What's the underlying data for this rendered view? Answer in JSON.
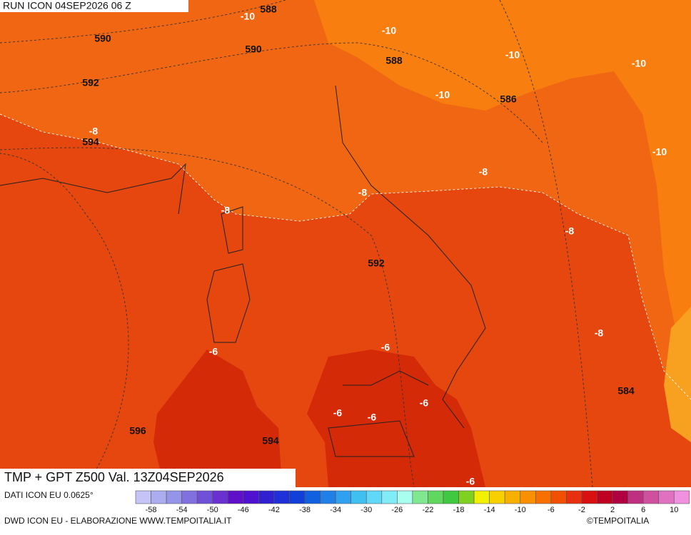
{
  "header": {
    "run": "RUN ICON 04SEP2026 06 Z",
    "title": "TMP + GPT Z500 Val. 13Z04SEP2026"
  },
  "map": {
    "temperature_labels": [
      -10,
      -10,
      -10,
      -10,
      -10,
      -8,
      -10,
      -8,
      -8,
      -8,
      -8,
      -8,
      -6,
      -6,
      -6,
      -6,
      -6,
      -6
    ],
    "height_labels": [
      588,
      590,
      590,
      588,
      592,
      586,
      594,
      592,
      584,
      596,
      594
    ]
  },
  "scale": {
    "ticks": [
      -58,
      -54,
      -50,
      -46,
      -42,
      -38,
      -34,
      -30,
      -26,
      -22,
      -18,
      -14,
      -10,
      -6,
      -2,
      2,
      6,
      10
    ],
    "colors": [
      "#c4c4f8",
      "#acacf0",
      "#9494e8",
      "#8070e0",
      "#7050d8",
      "#6a30d0",
      "#6010c8",
      "#5010d0",
      "#3020d0",
      "#2030d8",
      "#1040d8",
      "#1060e0",
      "#2080e8",
      "#30a0f0",
      "#40c0f0",
      "#60d8f8",
      "#80ecf8",
      "#a8fff0",
      "#80e890",
      "#60d860",
      "#40c840",
      "#80d020",
      "#f0f000",
      "#f8d000",
      "#f8b000",
      "#f89000",
      "#f87000",
      "#f05000",
      "#e83010",
      "#d81010",
      "#c00020",
      "#b00040",
      "#c03080",
      "#d050a0",
      "#e070c0",
      "#f090e0"
    ]
  },
  "footer": {
    "source": "DATI ICON EU 0.0625°",
    "credit": "DWD ICON EU - ELABORAZIONE WWW.TEMPOITALIA.IT",
    "copyright": "©TEMPOITALIA"
  }
}
